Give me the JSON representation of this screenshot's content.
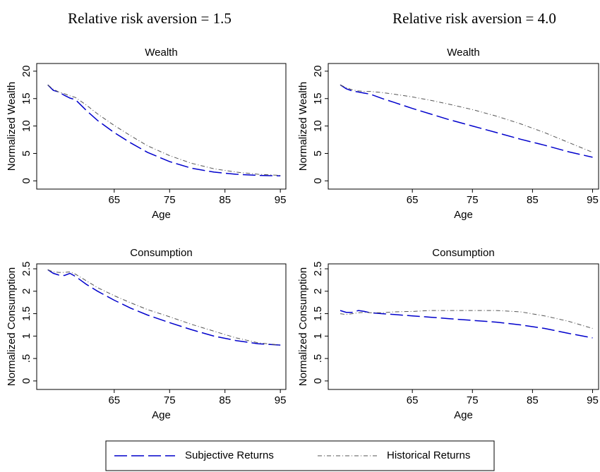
{
  "column_titles": [
    "Relative risk aversion = 1.5",
    "Relative risk aversion = 4.0"
  ],
  "chart_data": [
    {
      "type": "line",
      "title": "Wealth",
      "x_label": "Age",
      "y_label": "Normalized Wealth",
      "x": [
        53,
        54,
        55,
        56,
        57,
        58,
        60,
        62,
        65,
        68,
        71,
        75,
        79,
        83,
        87,
        91,
        95
      ],
      "xlim": [
        51,
        96
      ],
      "xticks": [
        65,
        75,
        85,
        95
      ],
      "ylim": [
        -1.5,
        21.4
      ],
      "yticks": [
        0,
        5,
        10,
        15,
        20
      ],
      "series": [
        {
          "name": "Subjective Returns",
          "color": "#0000cc",
          "values": [
            17.5,
            16.5,
            16.2,
            15.6,
            15.1,
            14.8,
            12.8,
            11.0,
            8.8,
            6.9,
            5.2,
            3.5,
            2.3,
            1.6,
            1.2,
            1.0,
            0.9
          ]
        },
        {
          "name": "Historical Returns",
          "color": "#555555",
          "values": [
            17.5,
            16.7,
            16.2,
            15.9,
            15.5,
            15.2,
            13.8,
            12.2,
            10.1,
            8.2,
            6.4,
            4.6,
            3.2,
            2.2,
            1.6,
            1.2,
            1.0
          ]
        }
      ]
    },
    {
      "type": "line",
      "title": "Wealth",
      "x_label": "Age",
      "y_label": "Normalized Wealth",
      "x": [
        53,
        54,
        55,
        56,
        57,
        58,
        60,
        62,
        65,
        68,
        71,
        75,
        79,
        83,
        87,
        91,
        95
      ],
      "xlim": [
        51,
        96
      ],
      "xticks": [
        65,
        75,
        85,
        95
      ],
      "ylim": [
        -1.5,
        21.4
      ],
      "yticks": [
        0,
        5,
        10,
        15,
        20
      ],
      "series": [
        {
          "name": "Subjective Returns",
          "color": "#0000cc",
          "values": [
            17.5,
            16.8,
            16.4,
            16.2,
            16.0,
            15.8,
            15.0,
            14.3,
            13.2,
            12.2,
            11.2,
            10.0,
            8.8,
            7.6,
            6.5,
            5.3,
            4.3
          ]
        },
        {
          "name": "Historical Returns",
          "color": "#555555",
          "values": [
            17.5,
            17.0,
            16.6,
            16.4,
            16.3,
            16.3,
            16.1,
            15.8,
            15.3,
            14.7,
            14.0,
            13.0,
            11.8,
            10.4,
            8.8,
            7.0,
            5.2
          ]
        }
      ]
    },
    {
      "type": "line",
      "title": "Consumption",
      "x_label": "Age",
      "y_label": "Normalized Consumption",
      "x": [
        53,
        54,
        55,
        56,
        57,
        58,
        60,
        62,
        65,
        68,
        71,
        75,
        79,
        83,
        87,
        91,
        95
      ],
      "xlim": [
        51,
        96
      ],
      "xticks": [
        65,
        75,
        85,
        95
      ],
      "ylim": [
        -0.19,
        2.61
      ],
      "yticks": [
        0,
        {
          "value": 0.5,
          "label": ".5"
        },
        1,
        1.5,
        2,
        2.5
      ],
      "series": [
        {
          "name": "Subjective Returns",
          "color": "#0000cc",
          "values": [
            2.48,
            2.4,
            2.36,
            2.35,
            2.4,
            2.33,
            2.15,
            2.0,
            1.8,
            1.62,
            1.47,
            1.3,
            1.14,
            1.0,
            0.9,
            0.83,
            0.8
          ]
        },
        {
          "name": "Historical Returns",
          "color": "#555555",
          "values": [
            2.48,
            2.43,
            2.42,
            2.42,
            2.43,
            2.38,
            2.23,
            2.08,
            1.9,
            1.74,
            1.59,
            1.43,
            1.26,
            1.11,
            0.96,
            0.85,
            0.8
          ]
        }
      ]
    },
    {
      "type": "line",
      "title": "Consumption",
      "x_label": "Age",
      "y_label": "Normalized Consumption",
      "x": [
        53,
        54,
        55,
        56,
        57,
        58,
        60,
        62,
        65,
        68,
        71,
        75,
        79,
        83,
        87,
        91,
        95
      ],
      "xlim": [
        51,
        96
      ],
      "xticks": [
        65,
        75,
        85,
        95
      ],
      "ylim": [
        -0.19,
        2.61
      ],
      "yticks": [
        0,
        {
          "value": 0.5,
          "label": ".5"
        },
        1,
        1.5,
        2,
        2.5
      ],
      "series": [
        {
          "name": "Subjective Returns",
          "color": "#0000cc",
          "values": [
            1.57,
            1.53,
            1.53,
            1.57,
            1.55,
            1.52,
            1.5,
            1.48,
            1.45,
            1.42,
            1.39,
            1.35,
            1.31,
            1.25,
            1.17,
            1.06,
            0.96
          ]
        },
        {
          "name": "Historical Returns",
          "color": "#555555",
          "values": [
            1.5,
            1.48,
            1.5,
            1.52,
            1.53,
            1.52,
            1.52,
            1.54,
            1.55,
            1.57,
            1.57,
            1.57,
            1.57,
            1.54,
            1.45,
            1.33,
            1.17
          ]
        }
      ]
    }
  ]
}
